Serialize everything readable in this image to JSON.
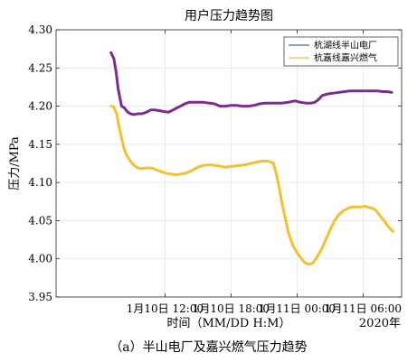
{
  "caption": "（a）半山电厂及嘉兴燃气压力趋势",
  "chart_data": {
    "type": "line",
    "title": "用户压力趋势图",
    "xlabel": "时间（MM/DD H:M）",
    "ylabel": "压力/MPa",
    "year_label": "2020年",
    "x_unit": "hours since 2020-01-10 00:00",
    "xlim": [
      2.1,
      33.5
    ],
    "ylim": [
      3.95,
      4.3
    ],
    "x_ticks": [
      {
        "x": 12,
        "label": "1月10日 12:00"
      },
      {
        "x": 18,
        "label": "1月10日 18:00"
      },
      {
        "x": 24,
        "label": "1月11日 00:00"
      },
      {
        "x": 30,
        "label": "1月11日 06:00"
      }
    ],
    "y_ticks": [
      3.95,
      4.0,
      4.05,
      4.1,
      4.15,
      4.2,
      4.25,
      4.3
    ],
    "grid": true,
    "legend": "top-right",
    "series": [
      {
        "name": "杭湖线半山电厂",
        "color": "#7b2c8e",
        "x": [
          7.1,
          7.35,
          7.55,
          7.75,
          8.05,
          8.3,
          8.55,
          8.85,
          9.2,
          9.55,
          9.9,
          10.3,
          10.7,
          11.1,
          11.5,
          11.9,
          12.3,
          12.6,
          13.0,
          13.4,
          13.8,
          14.2,
          14.6,
          15.0,
          15.5,
          16.0,
          16.5,
          17.0,
          17.5,
          18.0,
          18.5,
          19.0,
          19.6,
          20.1,
          20.6,
          21.1,
          21.6,
          22.1,
          22.6,
          23.2,
          23.8,
          24.3,
          24.8,
          25.3,
          25.6,
          25.9,
          26.3,
          26.8,
          27.3,
          27.8,
          28.3,
          28.8,
          29.3,
          29.8,
          30.3,
          30.8,
          31.3,
          31.8,
          32.2,
          32.6
        ],
        "y": [
          4.27,
          4.262,
          4.245,
          4.222,
          4.2,
          4.198,
          4.193,
          4.19,
          4.189,
          4.19,
          4.19,
          4.192,
          4.195,
          4.195,
          4.194,
          4.193,
          4.192,
          4.194,
          4.197,
          4.2,
          4.203,
          4.205,
          4.205,
          4.205,
          4.205,
          4.204,
          4.203,
          4.2,
          4.2,
          4.201,
          4.201,
          4.2,
          4.2,
          4.201,
          4.203,
          4.204,
          4.204,
          4.204,
          4.204,
          4.205,
          4.207,
          4.205,
          4.204,
          4.204,
          4.205,
          4.208,
          4.214,
          4.216,
          4.217,
          4.218,
          4.219,
          4.22,
          4.22,
          4.22,
          4.22,
          4.22,
          4.22,
          4.219,
          4.219,
          4.218
        ]
      },
      {
        "name": "杭嘉线嘉兴燃气",
        "color": "#f2c12e",
        "x": [
          7.1,
          7.35,
          7.6,
          7.8,
          8.05,
          8.3,
          8.55,
          8.85,
          9.2,
          9.55,
          9.9,
          10.3,
          10.7,
          11.0,
          11.3,
          11.7,
          12.1,
          12.6,
          13.0,
          13.4,
          13.8,
          14.2,
          14.6,
          15.0,
          15.4,
          15.8,
          16.2,
          16.8,
          17.4,
          18.0,
          18.6,
          19.2,
          19.8,
          20.4,
          20.9,
          21.3,
          21.6,
          21.85,
          22.1,
          22.35,
          22.6,
          22.9,
          23.2,
          23.6,
          24.0,
          24.4,
          24.7,
          25.0,
          25.4,
          25.8,
          26.2,
          26.6,
          27.0,
          27.4,
          27.8,
          28.2,
          28.6,
          29.0,
          29.4,
          29.8,
          30.2,
          30.6,
          30.9,
          31.2,
          31.5,
          31.9,
          32.3,
          32.7
        ],
        "y": [
          4.2,
          4.199,
          4.19,
          4.175,
          4.158,
          4.143,
          4.135,
          4.128,
          4.122,
          4.119,
          4.118,
          4.119,
          4.119,
          4.118,
          4.116,
          4.114,
          4.112,
          4.111,
          4.11,
          4.111,
          4.112,
          4.114,
          4.117,
          4.12,
          4.122,
          4.123,
          4.123,
          4.122,
          4.12,
          4.121,
          4.122,
          4.123,
          4.125,
          4.127,
          4.128,
          4.128,
          4.127,
          4.125,
          4.112,
          4.095,
          4.075,
          4.055,
          4.035,
          4.018,
          4.008,
          4.0,
          3.995,
          3.993,
          3.994,
          4.002,
          4.012,
          4.025,
          4.038,
          4.05,
          4.058,
          4.063,
          4.066,
          4.068,
          4.068,
          4.068,
          4.069,
          4.067,
          4.066,
          4.063,
          4.057,
          4.05,
          4.042,
          4.036
        ]
      }
    ]
  }
}
